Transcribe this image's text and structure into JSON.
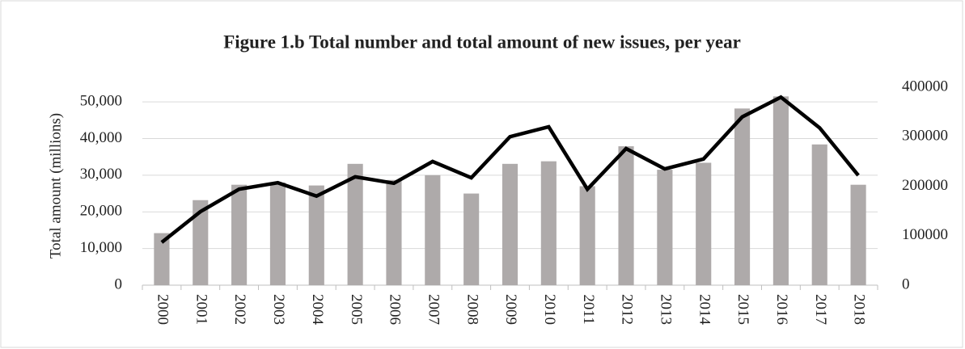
{
  "chart_data": {
    "type": "bar_line",
    "title": "Figure 1.b Total number and total amount of new issues, per year",
    "y_label": "Total amount (millions)",
    "categories": [
      "2000",
      "2001",
      "2002",
      "2003",
      "2004",
      "2005",
      "2006",
      "2007",
      "2008",
      "2009",
      "2010",
      "2011",
      "2012",
      "2013",
      "2014",
      "2015",
      "2016",
      "2017",
      "2018"
    ],
    "series": [
      {
        "type": "bar",
        "color": "#aeaaaa",
        "values": [
          14200,
          23200,
          27400,
          28000,
          27200,
          33100,
          28700,
          30000,
          25000,
          33100,
          33800,
          27000,
          37900,
          31500,
          33400,
          48200,
          51500,
          38400,
          27400
        ]
      },
      {
        "type": "line",
        "axis": "y2",
        "color": "#000000",
        "values": [
          86500,
          148600,
          194000,
          207000,
          180000,
          219000,
          206000,
          250000,
          217000,
          300000,
          320000,
          194000,
          276000,
          235000,
          255000,
          340000,
          380000,
          318000,
          222000
        ]
      }
    ],
    "ylim": [
      0,
      54000
    ],
    "yticks": [
      0,
      {
        "value": 10000,
        "label": "10,000"
      },
      {
        "value": 20000,
        "label": "20,000"
      },
      {
        "value": 30000,
        "label": "30,000"
      },
      {
        "value": 40000,
        "label": "40,000"
      },
      {
        "value": 50000,
        "label": "50,000"
      }
    ],
    "y2lim": [
      0,
      400000
    ],
    "y2ticks": [
      0,
      100000,
      200000,
      300000,
      400000
    ],
    "grid": true
  }
}
